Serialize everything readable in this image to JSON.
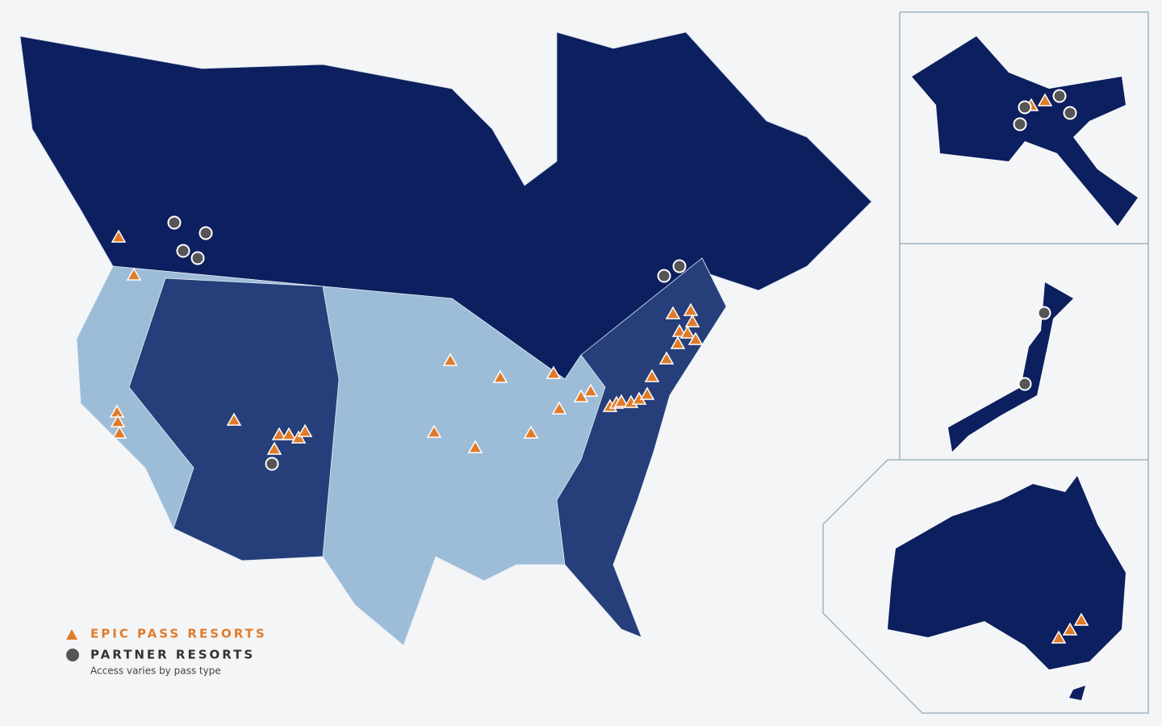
{
  "legend": {
    "epic": "EPIC PASS RESORTS",
    "partner": "PARTNER RESORTS",
    "note": "Access varies by pass type"
  }
}
